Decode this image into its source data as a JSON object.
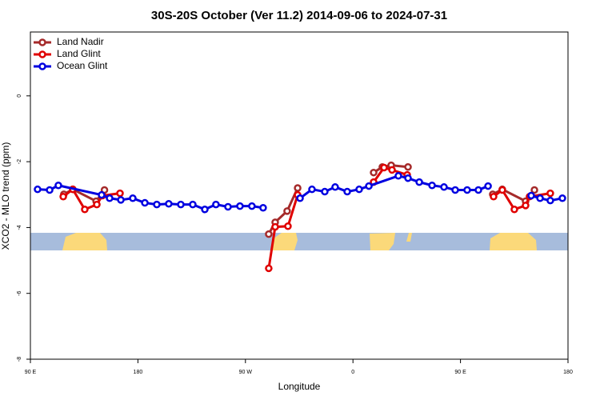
{
  "chart_data": {
    "type": "line",
    "title": "30S-20S October (Ver 11.2)   2014-09-06 to 2024-07-31",
    "x_label": "Longitude",
    "y_label": "XCO2 - MLO trend (ppm)",
    "xlim": [
      90,
      540
    ],
    "xticks": [
      {
        "value": 90,
        "label": "90 E"
      },
      180,
      {
        "value": 270,
        "label": "90 W"
      },
      {
        "value": 360,
        "label": "0"
      },
      {
        "value": 450,
        "label": "90 E"
      },
      {
        "value": 540,
        "label": "180"
      }
    ],
    "ylim": [
      -8,
      1.94
    ],
    "yticks": [
      -8,
      -6,
      -4,
      -2,
      0
    ],
    "legend": "top-left",
    "series": [
      {
        "name": "Land Nadir",
        "color": "#a52a2a",
        "x": [
          118,
          125.5,
          145,
          152,
          null,
          289.5,
          294.9,
          304.9,
          313.7,
          null,
          377.3,
          384.6,
          392,
          406.1,
          null,
          477,
          485,
          504.5,
          511.9
        ],
        "values": [
          -2.99,
          -2.84,
          -3.2,
          -2.86,
          null,
          -4.2,
          -3.84,
          -3.5,
          -2.8,
          null,
          -2.33,
          -2.16,
          -2.11,
          -2.16,
          null,
          -2.99,
          -2.84,
          -3.2,
          -2.86
        ]
      },
      {
        "name": "Land Glint",
        "color": "#e00000",
        "x": [
          117.5,
          125.5,
          135.5,
          145.6,
          150.3,
          165,
          null,
          289.5,
          294.9,
          305.6,
          313.7,
          null,
          377.3,
          386,
          392.7,
          405.4,
          null,
          477.7,
          485,
          495.1,
          504.5,
          507.8,
          525.2
        ],
        "values": [
          -3.06,
          -2.84,
          -3.45,
          -3.3,
          -3.03,
          -2.96,
          null,
          -5.24,
          -3.98,
          -3.96,
          -3.01,
          null,
          -2.62,
          -2.18,
          -2.25,
          -2.4,
          null,
          -3.06,
          -2.86,
          -3.45,
          -3.33,
          -3.06,
          -2.96
        ]
      },
      {
        "name": "Ocean Glint",
        "color": "#0000e0",
        "x": [
          96,
          106.1,
          113.4,
          149.6,
          156.3,
          165.7,
          175.7,
          185.8,
          195.8,
          205.8,
          215.9,
          225.9,
          236,
          245.3,
          255.4,
          265.4,
          275.4,
          284.8,
          null,
          315.7,
          325.7,
          336.4,
          345.1,
          355.2,
          365.2,
          373.3,
          398,
          406.1,
          415.5,
          426.2,
          436.2,
          445.6,
          455.6,
          465,
          473.1,
          null,
          509.2,
          516.6,
          525.2,
          535.3
        ],
        "values": [
          -2.84,
          -2.86,
          -2.72,
          -3.01,
          -3.11,
          -3.16,
          -3.11,
          -3.25,
          -3.3,
          -3.28,
          -3.3,
          -3.3,
          -3.45,
          -3.3,
          -3.37,
          -3.35,
          -3.35,
          -3.4,
          null,
          -3.11,
          -2.84,
          -2.91,
          -2.77,
          -2.91,
          -2.84,
          -2.74,
          -2.43,
          -2.5,
          -2.62,
          -2.72,
          -2.77,
          -2.86,
          -2.86,
          -2.86,
          -2.74,
          null,
          -3.03,
          -3.11,
          -3.18,
          -3.11
        ]
      }
    ]
  }
}
